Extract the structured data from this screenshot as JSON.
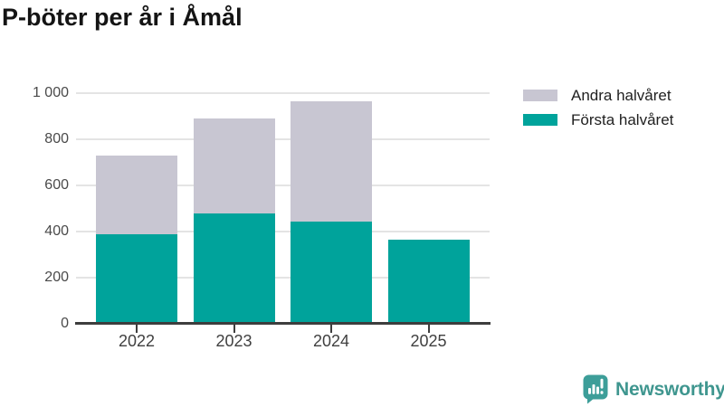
{
  "title": "P-böter per år i Åmål",
  "chart_data": {
    "type": "bar",
    "stacked": true,
    "title": "P-böter per år i Åmål",
    "categories": [
      "2022",
      "2023",
      "2024",
      "2025"
    ],
    "series": [
      {
        "name": "Första halvåret",
        "color": "#00a39b",
        "values": [
          390,
          480,
          445,
          365
        ]
      },
      {
        "name": "Andra halvåret",
        "color": "#c8c6d2",
        "values": [
          340,
          410,
          520,
          0
        ]
      }
    ],
    "totals": [
      730,
      890,
      965,
      365
    ],
    "xlabel": "",
    "ylabel": "",
    "ylim": [
      0,
      1000
    ],
    "y_ticks": [
      {
        "value": 0,
        "label": "0"
      },
      {
        "value": 200,
        "label": "200"
      },
      {
        "value": 400,
        "label": "400"
      },
      {
        "value": 600,
        "label": "600"
      },
      {
        "value": 800,
        "label": "800"
      },
      {
        "value": 1000,
        "label": "1 000"
      }
    ],
    "grid": "horizontal",
    "legend_position": "top-right"
  },
  "legend": [
    {
      "label": "Andra halvåret",
      "color": "#c8c6d2"
    },
    {
      "label": "Första halvåret",
      "color": "#00a39b"
    }
  ],
  "footer": {
    "brand": "Newsworthy"
  },
  "colors": {
    "teal": "#00a39b",
    "gray": "#c8c6d2",
    "gridline": "#e4e4e4",
    "axis": "#3d3d3d",
    "tick_text": "#4a4a4a",
    "brand_teal": "#3f968f",
    "brand_icon": "#3d9e99"
  }
}
